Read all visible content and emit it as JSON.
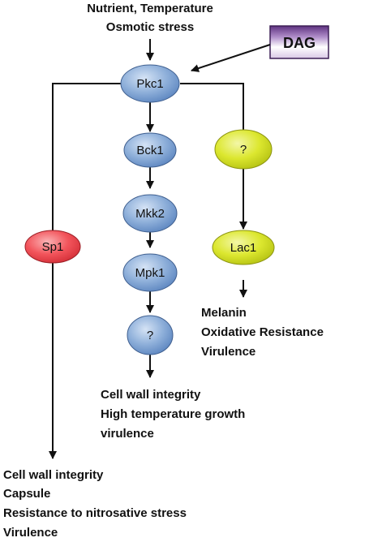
{
  "inputs": {
    "line1": "Nutrient, Temperature",
    "line2": "Osmotic stress",
    "dag": "DAG"
  },
  "nodes": {
    "pkc1": "Pkc1",
    "bck1": "Bck1",
    "mkk2": "Mkk2",
    "mpk1": "Mpk1",
    "unknown_mpk": "?",
    "unknown_lac": "?",
    "lac1": "Lac1",
    "sp1": "Sp1"
  },
  "outputs": {
    "lac1": [
      "Melanin",
      "Oxidative Resistance",
      "Virulence"
    ],
    "mpk1": [
      "Cell wall integrity",
      "High temperature growth",
      "virulence"
    ],
    "sp1": [
      "Cell wall integrity",
      "Capsule",
      "Resistance to nitrosative stress",
      "Virulence"
    ]
  },
  "colors": {
    "blue_node": "#8fb0da",
    "blue_node_dark": "#5d86c0",
    "yellow_node": "#dce72f",
    "yellow_node_dark": "#b5c213",
    "red_node": "#f2545b",
    "red_node_dark": "#d42f38",
    "dag_fill": "#a07ab8",
    "dag_fill_dark": "#5e3280"
  }
}
